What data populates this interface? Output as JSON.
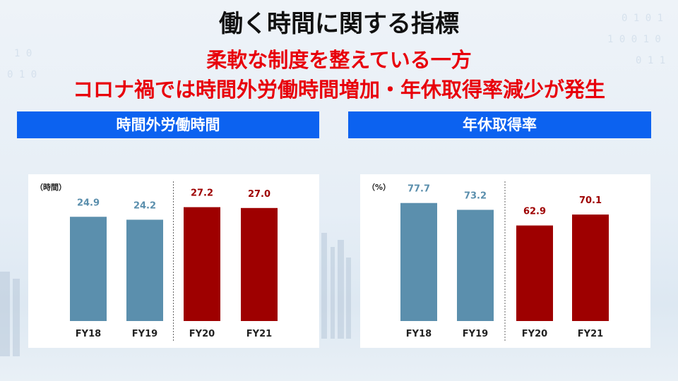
{
  "title": "働く時間に関する指標",
  "subtitle_lines": [
    "柔軟な制度を整えている一方",
    "コロナ禍では時間外労働時間増加・年休取得率減少が発生"
  ],
  "banners": {
    "left": "時間外労働時間",
    "right": "年休取得率"
  },
  "colors": {
    "banner": "#0c62f0",
    "subtitle": "#e8000b",
    "bar_pre": "#5b8fad",
    "bar_post": "#9e0000",
    "label_pre": "#5b8fad",
    "label_post": "#9e0000"
  },
  "chart_data": [
    {
      "type": "bar",
      "title": "時間外労働時間",
      "unit_label": "（時間）",
      "categories": [
        "FY18",
        "FY19",
        "FY20",
        "FY21"
      ],
      "values": [
        24.9,
        24.2,
        27.2,
        27.0
      ],
      "value_labels": [
        "24.9",
        "24.2",
        "27.2",
        "27.0"
      ],
      "ylim": [
        0,
        30
      ],
      "separator_after_index": 1,
      "grid": false
    },
    {
      "type": "bar",
      "title": "年休取得率",
      "unit_label": "（%）",
      "categories": [
        "FY18",
        "FY19",
        "FY20",
        "FY21"
      ],
      "values": [
        77.7,
        73.2,
        62.9,
        70.1
      ],
      "value_labels": [
        "77.7",
        "73.2",
        "62.9",
        "70.1"
      ],
      "ylim": [
        0,
        85
      ],
      "separator_after_index": 1,
      "grid": false
    }
  ]
}
